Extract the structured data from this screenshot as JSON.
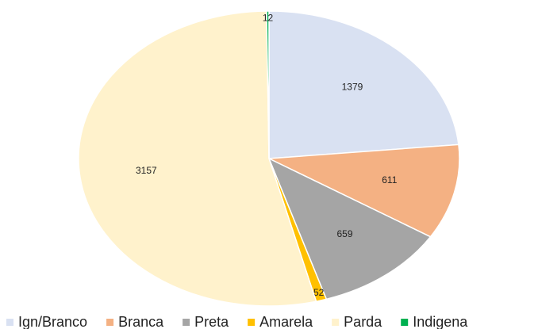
{
  "chart_data": {
    "type": "pie",
    "categories": [
      "Ign/Branco",
      "Branca",
      "Preta",
      "Amarela",
      "Parda",
      "Indigena"
    ],
    "values": [
      1379,
      611,
      659,
      52,
      3157,
      12
    ],
    "colors": [
      "#d9e1f2",
      "#f4b183",
      "#a5a5a5",
      "#ffc000",
      "#fff2cc",
      "#00b050"
    ],
    "legend": "bottom"
  }
}
